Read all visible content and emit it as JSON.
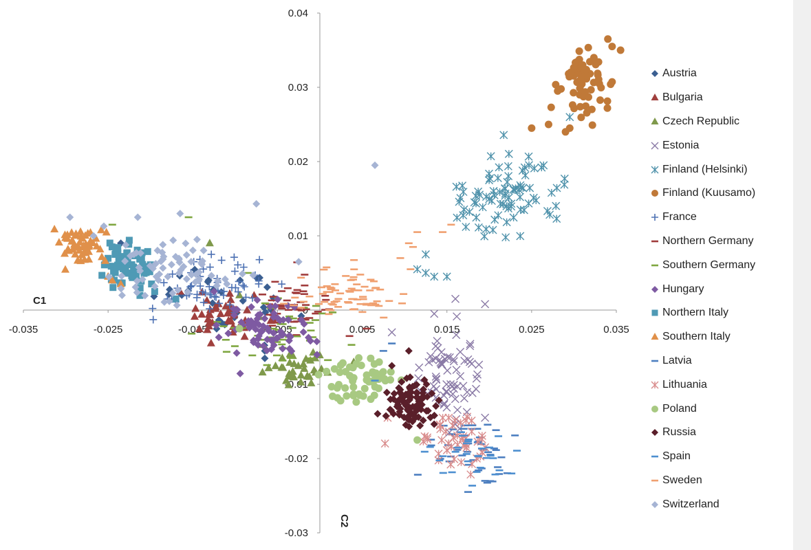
{
  "chart_data": {
    "type": "scatter",
    "title": "",
    "xlabel": "C1",
    "ylabel": "C2",
    "xlim": [
      -0.035,
      0.035
    ],
    "ylim": [
      -0.03,
      0.04
    ],
    "x_ticks": [
      "-0.035",
      "-0.025",
      "-0.015",
      "-0.005",
      "0.005",
      "0.015",
      "0.025",
      "0.035"
    ],
    "y_ticks": [
      "-0.03",
      "-0.02",
      "-0.01",
      "0",
      "0.01",
      "0.02",
      "0.03",
      "0.04"
    ],
    "legend_position": "right",
    "series": [
      {
        "name": "Austria",
        "marker": "diamond",
        "color": "#3b5f91",
        "n": 30,
        "cx": -0.0105,
        "cy": 0.0015,
        "sx": 0.004,
        "sy": 0.0025,
        "pts": [
          [
            -0.0065,
            -0.0055
          ],
          [
            -0.0065,
            -0.0065
          ],
          [
            -0.0235,
            0.009
          ]
        ]
      },
      {
        "name": "Bulgaria",
        "marker": "triangle",
        "color": "#a0403e",
        "n": 45,
        "cx": -0.0115,
        "cy": -0.001,
        "sx": 0.0025,
        "sy": 0.0015,
        "pts": [
          [
            -0.0165,
            0.0025
          ]
        ]
      },
      {
        "name": "Czech Republic",
        "marker": "triangle",
        "color": "#7f994b",
        "n": 35,
        "cx": -0.0025,
        "cy": -0.0075,
        "sx": 0.0015,
        "sy": 0.0012,
        "pts": [
          [
            -0.013,
            0.009
          ],
          [
            0.004,
            -0.007
          ],
          [
            -0.0095,
            0.002
          ]
        ]
      },
      {
        "name": "Estonia",
        "marker": "x",
        "color": "#8a7aa6",
        "n": 70,
        "cx": 0.0155,
        "cy": -0.0085,
        "sx": 0.002,
        "sy": 0.003,
        "pts": [
          [
            0.016,
            0.0015
          ],
          [
            0.0195,
            0.0008
          ],
          [
            0.0135,
            -0.0005
          ],
          [
            0.0085,
            -0.003
          ],
          [
            0.0195,
            -0.0145
          ],
          [
            0.0165,
            -0.016
          ]
        ]
      },
      {
        "name": "Finland (Helsinki)",
        "marker": "asterisk",
        "color": "#4f92ab",
        "n": 85,
        "cx": 0.022,
        "cy": 0.0155,
        "sx": 0.0032,
        "sy": 0.0028,
        "pts": [
          [
            0.0135,
            0.0045
          ],
          [
            0.0125,
            0.005
          ],
          [
            0.0115,
            0.0055
          ],
          [
            0.0125,
            0.0075
          ],
          [
            0.015,
            0.0045
          ],
          [
            0.0295,
            0.026
          ]
        ]
      },
      {
        "name": "Finland (Kuusamo)",
        "marker": "circle",
        "color": "#c07938",
        "n": 60,
        "cx": 0.031,
        "cy": 0.0305,
        "sx": 0.0016,
        "sy": 0.0024,
        "pts": [
          [
            0.025,
            0.0245
          ],
          [
            0.027,
            0.025
          ],
          [
            0.029,
            0.024
          ],
          [
            0.0295,
            0.0245
          ],
          [
            0.0345,
            0.0355
          ],
          [
            0.034,
            0.0365
          ],
          [
            0.0355,
            0.035
          ]
        ]
      },
      {
        "name": "France",
        "marker": "plus",
        "color": "#4d71b3",
        "n": 55,
        "cx": -0.012,
        "cy": 0.0035,
        "sx": 0.0032,
        "sy": 0.0018,
        "pts": [
          [
            -0.0175,
            0.0015
          ],
          [
            -0.018,
            0.0015
          ],
          [
            -0.0045,
            0.0035
          ]
        ]
      },
      {
        "name": "Northern Germany",
        "marker": "dash",
        "color": "#a03b3b",
        "n": 50,
        "cx": -0.0035,
        "cy": 0.0005,
        "sx": 0.002,
        "sy": 0.0022,
        "pts": [
          [
            0.0055,
            -0.0025
          ],
          [
            0.0035,
            -0.0035
          ]
        ]
      },
      {
        "name": "Southern Germany",
        "marker": "dash",
        "color": "#7fa640",
        "n": 50,
        "cx": -0.005,
        "cy": -0.0025,
        "sx": 0.0035,
        "sy": 0.0025,
        "pts": [
          [
            -0.0155,
            0.0125
          ],
          [
            -0.0245,
            0.0115
          ],
          [
            -0.0085,
            0.005
          ]
        ]
      },
      {
        "name": "Hungary",
        "marker": "diamond",
        "color": "#7e5aa2",
        "n": 75,
        "cx": -0.006,
        "cy": -0.0025,
        "sx": 0.0025,
        "sy": 0.0018,
        "pts": [
          [
            -0.0125,
            0.0025
          ]
        ]
      },
      {
        "name": "Northern Italy",
        "marker": "square",
        "color": "#4f9ab5",
        "n": 65,
        "cx": -0.0225,
        "cy": 0.0065,
        "sx": 0.0016,
        "sy": 0.0015,
        "pts": [
          [
            -0.0195,
            0.0025
          ],
          [
            -0.017,
            0.0015
          ]
        ]
      },
      {
        "name": "Southern Italy",
        "marker": "triangle",
        "color": "#e0904a",
        "n": 55,
        "cx": -0.0285,
        "cy": 0.0085,
        "sx": 0.0015,
        "sy": 0.0012,
        "pts": [
          [
            -0.0245,
            0.004
          ],
          [
            -0.0235,
            0.0035
          ],
          [
            -0.025,
            0.0045
          ]
        ]
      },
      {
        "name": "Latvia",
        "marker": "dash",
        "color": "#4d7fc0",
        "n": 45,
        "cx": 0.0185,
        "cy": -0.0185,
        "sx": 0.0025,
        "sy": 0.0018,
        "pts": [
          [
            0.0085,
            -0.0045
          ],
          [
            0.0075,
            -0.0055
          ],
          [
            0.0175,
            -0.0245
          ],
          [
            0.0195,
            -0.023
          ]
        ]
      },
      {
        "name": "Lithuania",
        "marker": "asterisk",
        "color": "#d98c8c",
        "n": 45,
        "cx": 0.0155,
        "cy": -0.0175,
        "sx": 0.0025,
        "sy": 0.0018,
        "pts": [
          [
            0.008,
            -0.0145
          ],
          [
            0.0195,
            -0.0185
          ]
        ]
      },
      {
        "name": "Poland",
        "marker": "circle",
        "color": "#a8c982",
        "n": 55,
        "cx": 0.0045,
        "cy": -0.0095,
        "sx": 0.002,
        "sy": 0.0015,
        "pts": [
          [
            0.006,
            -0.0065
          ],
          [
            0.007,
            -0.007
          ],
          [
            0.0115,
            -0.0175
          ],
          [
            -0.0095,
            -0.0025
          ]
        ]
      },
      {
        "name": "Russia",
        "marker": "diamond",
        "color": "#5a1f2a",
        "n": 95,
        "cx": 0.0105,
        "cy": -0.0125,
        "sx": 0.0015,
        "sy": 0.0015,
        "pts": [
          [
            0.0105,
            -0.0055
          ],
          [
            0.0085,
            -0.0075
          ]
        ]
      },
      {
        "name": "Spain",
        "marker": "dash",
        "color": "#4d8fd0",
        "n": 30,
        "cx": 0.018,
        "cy": -0.0195,
        "sx": 0.0025,
        "sy": 0.0018,
        "pts": [
          [
            0.0065,
            -0.0095
          ]
        ]
      },
      {
        "name": "Sweden",
        "marker": "dash",
        "color": "#f0a070",
        "n": 75,
        "cx": 0.0035,
        "cy": 0.0025,
        "sx": 0.0028,
        "sy": 0.0015,
        "pts": [
          [
            0.0115,
            0.0105
          ],
          [
            0.0105,
            0.009
          ],
          [
            0.011,
            0.0085
          ],
          [
            0.0095,
            0.007
          ],
          [
            0.0155,
            0.0115
          ],
          [
            0.0145,
            0.0105
          ]
        ]
      },
      {
        "name": "Switzerland",
        "marker": "diamond",
        "color": "#a6b4d4",
        "n": 70,
        "cx": -0.0175,
        "cy": 0.0055,
        "sx": 0.0035,
        "sy": 0.0022,
        "pts": [
          [
            0.0065,
            0.0195
          ],
          [
            -0.0075,
            0.0143
          ],
          [
            -0.0295,
            0.0125
          ],
          [
            -0.0215,
            0.0125
          ],
          [
            -0.0165,
            0.013
          ],
          [
            -0.0255,
            0.0113
          ],
          [
            -0.0145,
            0.0095
          ],
          [
            -0.0025,
            0.0065
          ]
        ]
      }
    ]
  }
}
